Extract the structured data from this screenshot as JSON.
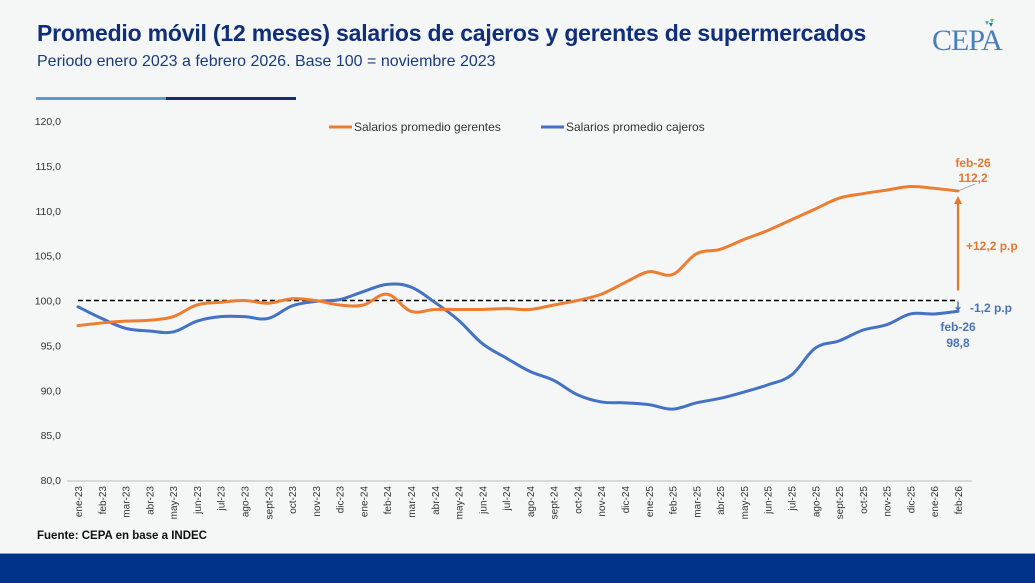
{
  "header": {
    "title": "Promedio móvil (12 meses) salarios de cajeros y gerentes de supermercados",
    "subtitle": "Periodo enero 2023 a febrero 2026. Base 100 = noviembre 2023",
    "logo_text": "CEPA"
  },
  "footer": {
    "source": "Fuente: CEPA en base a INDEC"
  },
  "colors": {
    "gerentes": "#ed7d31",
    "cajeros": "#4472c4",
    "title": "#0f2f7a",
    "footer_bar": "#02318a"
  },
  "chart_data": {
    "type": "line",
    "title": "Promedio móvil (12 meses) salarios de cajeros y gerentes de supermercados",
    "subtitle": "Periodo enero 2023 a febrero 2026. Base 100 = noviembre 2023",
    "xlabel": "",
    "ylabel": "",
    "ylim": [
      80,
      120
    ],
    "yticks": [
      80,
      85,
      90,
      95,
      100,
      105,
      110,
      115,
      120
    ],
    "ytick_labels": [
      "80,0",
      "85,0",
      "90,0",
      "95,0",
      "100,0",
      "105,0",
      "110,0",
      "115,0",
      "120,0"
    ],
    "grid": false,
    "legend_position": "top-center",
    "x": [
      "ene-23",
      "feb-23",
      "mar-23",
      "abr-23",
      "may-23",
      "jun-23",
      "jul-23",
      "ago-23",
      "sept-23",
      "oct-23",
      "nov-23",
      "dic-23",
      "ene-24",
      "feb-24",
      "mar-24",
      "abr-24",
      "may-24",
      "jun-24",
      "jul-24",
      "ago-24",
      "sept-24",
      "oct-24",
      "nov-24",
      "dic-24",
      "ene-25",
      "feb-25",
      "mar-25",
      "abr-25",
      "may-25",
      "jun-25",
      "jul-25",
      "ago-25",
      "sept-25",
      "oct-25",
      "nov-25",
      "dic-25",
      "ene-26",
      "feb-26"
    ],
    "series": [
      {
        "name": "Salarios promedio gerentes",
        "color": "#ed7d31",
        "values": [
          97.2,
          97.5,
          97.7,
          97.8,
          98.2,
          99.5,
          99.8,
          100.0,
          99.7,
          100.2,
          100.0,
          99.5,
          99.5,
          100.7,
          98.8,
          99.0,
          99.0,
          99.0,
          99.1,
          99.0,
          99.5,
          100.0,
          100.7,
          102.0,
          103.2,
          102.9,
          105.2,
          105.7,
          106.8,
          107.8,
          109.0,
          110.2,
          111.4,
          111.9,
          112.3,
          112.7,
          112.5,
          112.2
        ]
      },
      {
        "name": "Salarios promedio cajeros",
        "color": "#4472c4",
        "values": [
          99.3,
          98.0,
          96.9,
          96.6,
          96.5,
          97.7,
          98.2,
          98.2,
          98.0,
          99.4,
          99.9,
          100.1,
          101.0,
          101.8,
          101.5,
          99.8,
          97.8,
          95.2,
          93.6,
          92.1,
          91.1,
          89.5,
          88.7,
          88.6,
          88.4,
          87.9,
          88.6,
          89.1,
          89.8,
          90.6,
          91.7,
          94.7,
          95.5,
          96.7,
          97.3,
          98.5,
          98.5,
          98.8
        ]
      }
    ],
    "reference_line": {
      "value": 100,
      "style": "dashed",
      "color": "#000000"
    },
    "annotations": [
      {
        "series": "Salarios promedio gerentes",
        "label_month": "feb-26",
        "label_value": "112,2"
      },
      {
        "series": "Salarios promedio cajeros",
        "label_month": "feb-26",
        "label_value": "98,8"
      },
      {
        "type": "arrow",
        "from": 100,
        "to": 112.2,
        "label": "+12,2 p.p",
        "color": "#e8772e"
      },
      {
        "type": "arrow",
        "from": 100,
        "to": 98.8,
        "label": "-1,2 p.p",
        "color": "#4a74b5"
      }
    ]
  }
}
